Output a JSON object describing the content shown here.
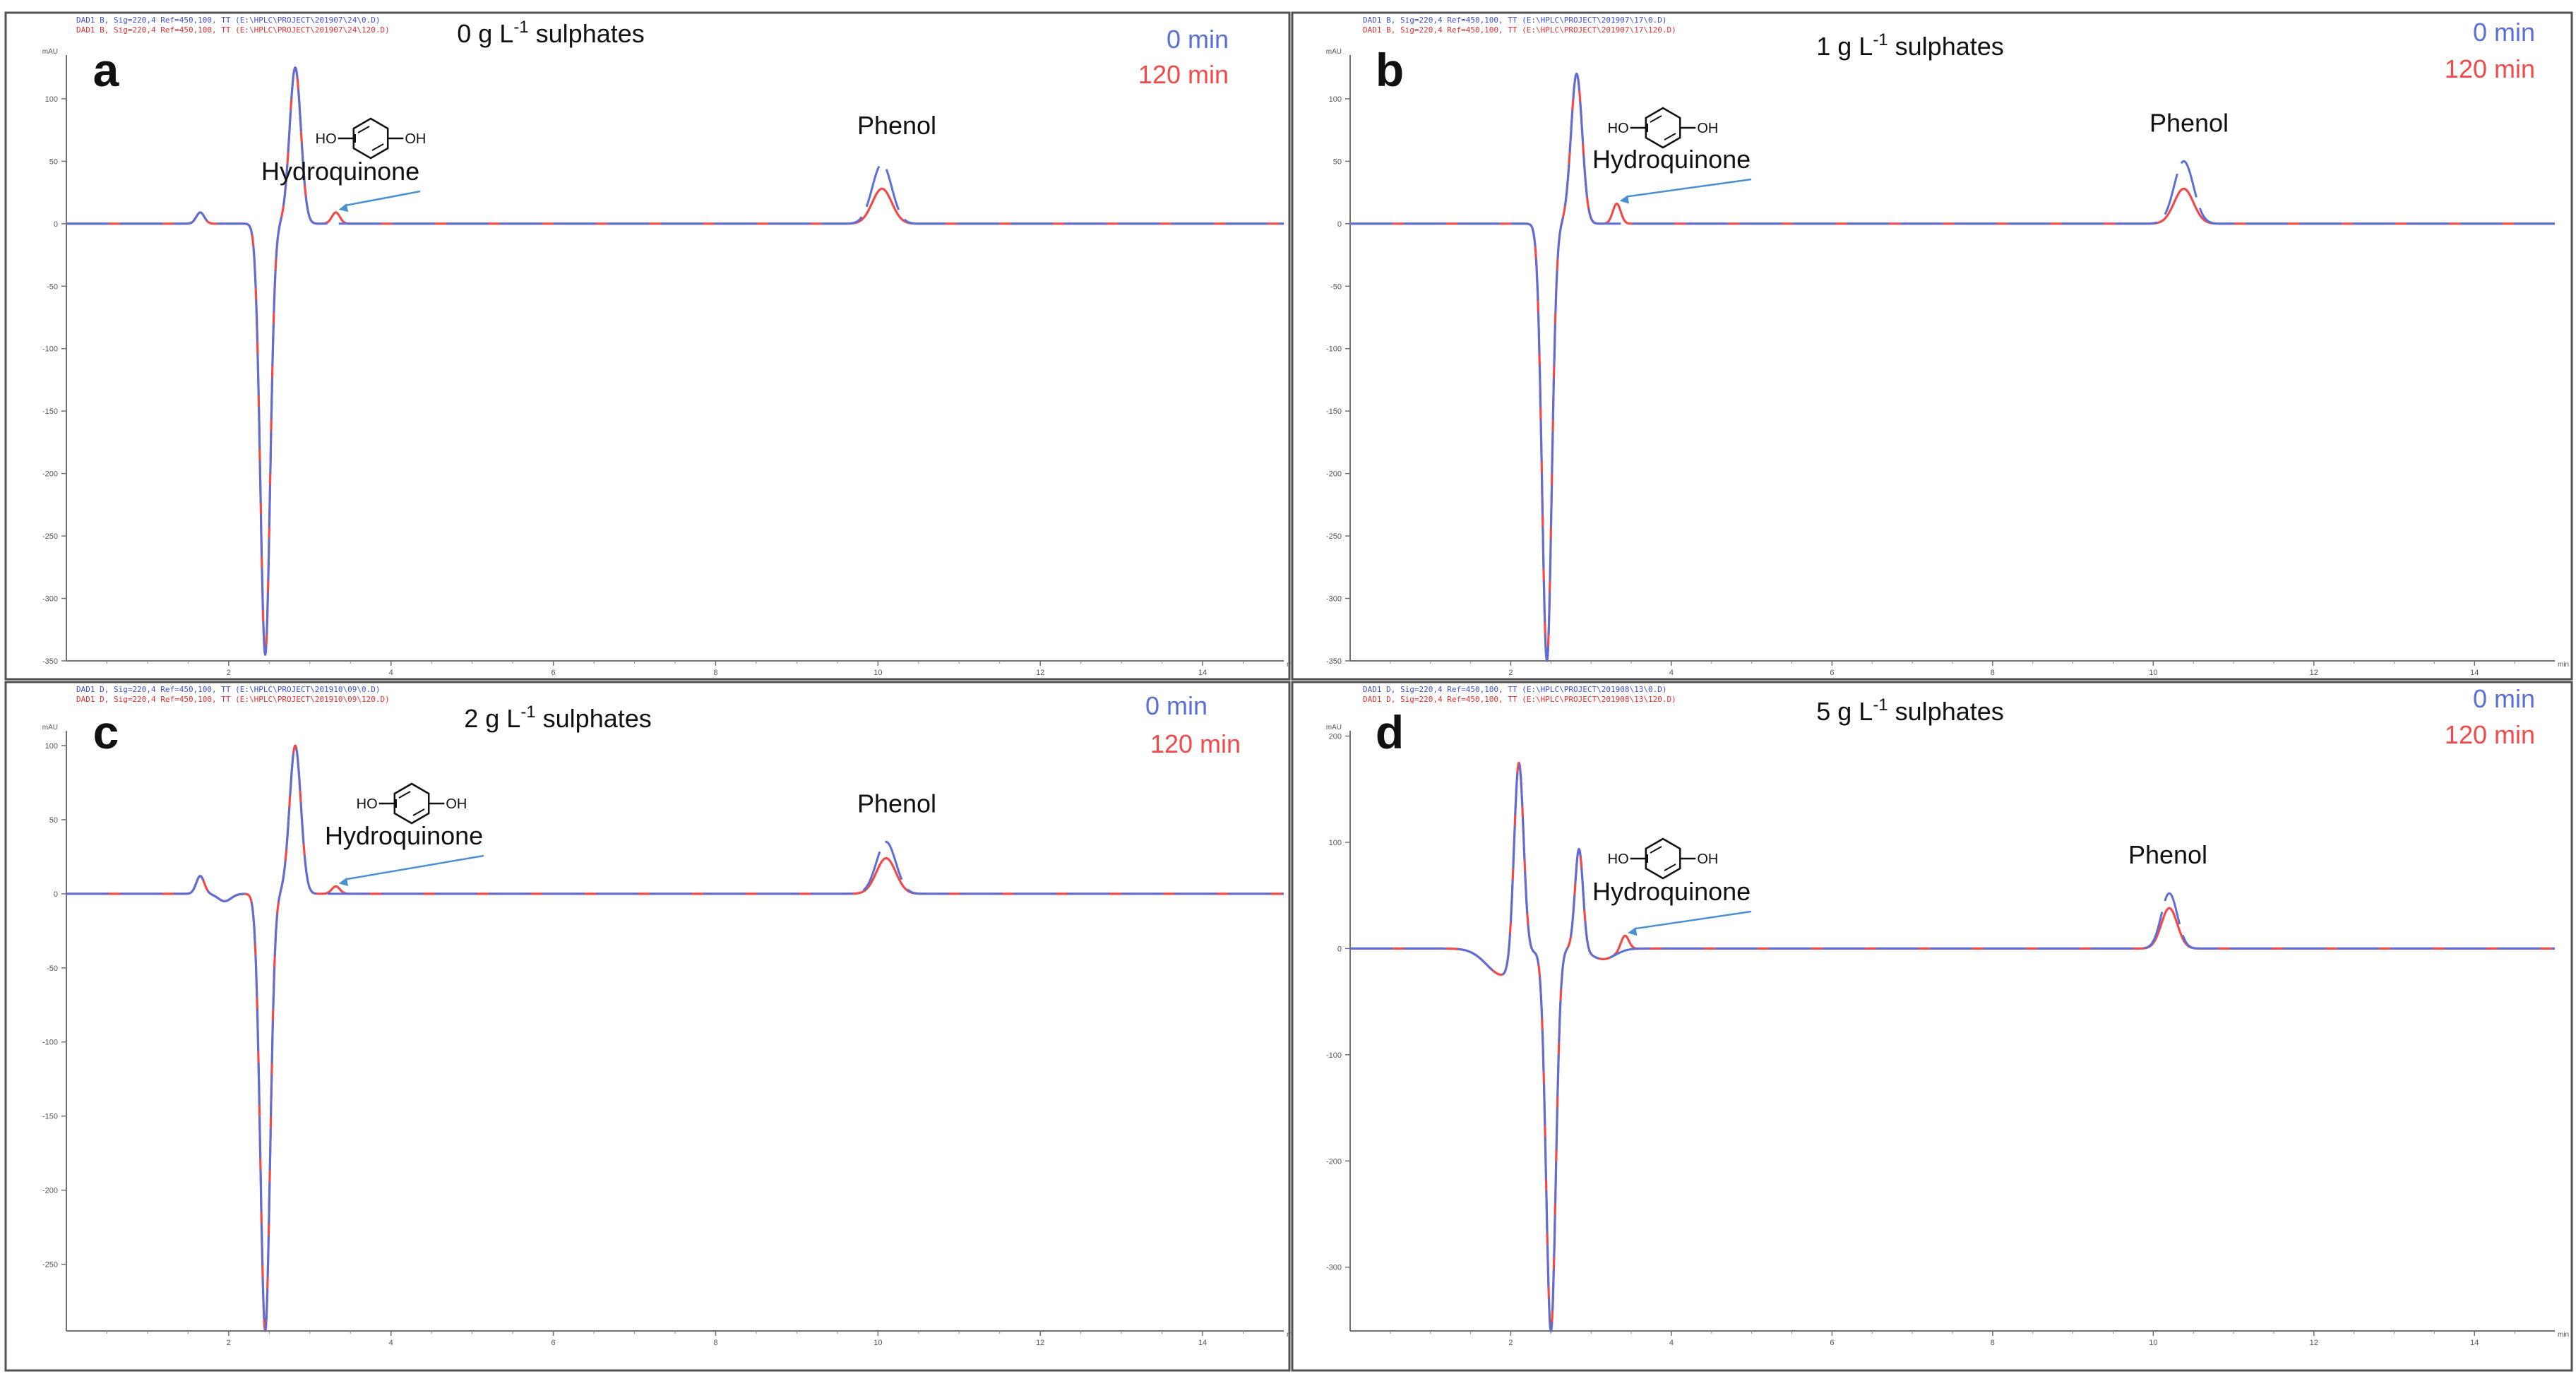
{
  "chart_data": [
    {
      "type": "line",
      "panel_letter": "a",
      "title_pre": "0 g L",
      "title_sup": "-1",
      "title_post": " sulphates",
      "y_unit": "mAU",
      "x_unit": "min",
      "xlim": [
        0,
        15
      ],
      "ylim": [
        -350,
        135
      ],
      "x_ticks": [
        "2",
        "4",
        "6",
        "8",
        "10",
        "12",
        "14"
      ],
      "y_ticks": [
        "100",
        "50",
        "0",
        "-50",
        "-100",
        "-150",
        "-200",
        "-250",
        "-300",
        "-350"
      ],
      "header_lines": [
        "DAD1 B, Sig=220,4 Ref=450,100, TT (E:\\HPLC\\PROJECT\\201907\\24\\0.D)",
        "DAD1 B, Sig=220,4 Ref=450,100, TT (E:\\HPLC\\PROJECT\\201907\\24\\120.D)"
      ],
      "series": [
        {
          "name": "0 min",
          "color": "#5b6fd6",
          "peaks": [
            {
              "rt": 1.65,
              "height": 9,
              "width": 0.05
            },
            {
              "rt": 2.45,
              "height": -345,
              "width": 0.06
            },
            {
              "rt": 2.82,
              "height": 125,
              "width": 0.07
            },
            {
              "rt": 10.05,
              "height": 48,
              "width": 0.12
            }
          ]
        },
        {
          "name": "120 min",
          "color": "#f04a4a",
          "peaks": [
            {
              "rt": 1.65,
              "height": 9,
              "width": 0.05
            },
            {
              "rt": 2.45,
              "height": -345,
              "width": 0.06
            },
            {
              "rt": 2.82,
              "height": 125,
              "width": 0.07
            },
            {
              "rt": 3.32,
              "height": 9,
              "width": 0.05
            },
            {
              "rt": 10.05,
              "height": 28,
              "width": 0.12
            }
          ]
        }
      ],
      "annotations": {
        "hydroquinone": {
          "label": "Hydroquinone",
          "rt": 3.32,
          "struct_ho": "HO",
          "struct_oh": "OH"
        },
        "phenol": {
          "label": "Phenol",
          "rt": 10.05
        }
      }
    },
    {
      "type": "line",
      "panel_letter": "b",
      "title_pre": "1 g L",
      "title_sup": "-1",
      "title_post": " sulphates",
      "y_unit": "mAU",
      "x_unit": "min",
      "xlim": [
        0,
        15
      ],
      "ylim": [
        -350,
        135
      ],
      "x_ticks": [
        "2",
        "4",
        "6",
        "8",
        "10",
        "12",
        "14"
      ],
      "y_ticks": [
        "100",
        "50",
        "0",
        "-50",
        "-100",
        "-150",
        "-200",
        "-250",
        "-300",
        "-350"
      ],
      "header_lines": [
        "DAD1 B, Sig=220,4 Ref=450,100, TT (E:\\HPLC\\PROJECT\\201907\\17\\0.D)",
        "DAD1 B, Sig=220,4 Ref=450,100, TT (E:\\HPLC\\PROJECT\\201907\\17\\120.D)"
      ],
      "series": [
        {
          "name": "0 min",
          "color": "#5b6fd6",
          "peaks": [
            {
              "rt": 2.45,
              "height": -350,
              "width": 0.06
            },
            {
              "rt": 2.82,
              "height": 120,
              "width": 0.07
            },
            {
              "rt": 10.38,
              "height": 50,
              "width": 0.12
            }
          ]
        },
        {
          "name": "120 min",
          "color": "#f04a4a",
          "peaks": [
            {
              "rt": 2.45,
              "height": -350,
              "width": 0.06
            },
            {
              "rt": 2.82,
              "height": 120,
              "width": 0.07
            },
            {
              "rt": 3.32,
              "height": 16,
              "width": 0.05
            },
            {
              "rt": 10.38,
              "height": 28,
              "width": 0.12
            }
          ]
        }
      ],
      "annotations": {
        "hydroquinone": {
          "label": "Hydroquinone",
          "rt": 3.32,
          "struct_ho": "HO",
          "struct_oh": "OH"
        },
        "phenol": {
          "label": "Phenol",
          "rt": 10.38
        }
      }
    },
    {
      "type": "line",
      "panel_letter": "c",
      "title_pre": "2 g L",
      "title_sup": "-1",
      "title_post": " sulphates",
      "y_unit": "mAU",
      "x_unit": "min",
      "xlim": [
        0,
        15
      ],
      "ylim": [
        -295,
        110
      ],
      "x_ticks": [
        "2",
        "4",
        "6",
        "8",
        "10",
        "12",
        "14"
      ],
      "y_ticks": [
        "100",
        "50",
        "0",
        "-50",
        "-100",
        "-150",
        "-200",
        "-250"
      ],
      "header_lines": [
        "DAD1 D, Sig=220,4 Ref=450,100, TT (E:\\HPLC\\PROJECT\\201910\\09\\0.D)",
        "DAD1 D, Sig=220,4 Ref=450,100, TT (E:\\HPLC\\PROJECT\\201910\\09\\120.D)"
      ],
      "series": [
        {
          "name": "0 min",
          "color": "#5b6fd6",
          "peaks": [
            {
              "rt": 1.65,
              "height": 12,
              "width": 0.05
            },
            {
              "rt": 1.95,
              "height": -5,
              "width": 0.08
            },
            {
              "rt": 2.45,
              "height": -295,
              "width": 0.06
            },
            {
              "rt": 2.82,
              "height": 100,
              "width": 0.07
            },
            {
              "rt": 10.1,
              "height": 35,
              "width": 0.12
            }
          ]
        },
        {
          "name": "120 min",
          "color": "#f04a4a",
          "peaks": [
            {
              "rt": 1.65,
              "height": 12,
              "width": 0.05
            },
            {
              "rt": 1.95,
              "height": -5,
              "width": 0.08
            },
            {
              "rt": 2.45,
              "height": -295,
              "width": 0.06
            },
            {
              "rt": 2.82,
              "height": 100,
              "width": 0.07
            },
            {
              "rt": 3.32,
              "height": 5,
              "width": 0.05
            },
            {
              "rt": 10.1,
              "height": 24,
              "width": 0.12
            }
          ]
        }
      ],
      "annotations": {
        "hydroquinone": {
          "label": "Hydroquinone",
          "rt": 3.32,
          "struct_ho": "HO",
          "struct_oh": "OH"
        },
        "phenol": {
          "label": "Phenol",
          "rt": 10.1
        }
      }
    },
    {
      "type": "line",
      "panel_letter": "d",
      "title_pre": "5 g L",
      "title_sup": "-1",
      "title_post": " sulphates",
      "y_unit": "mAU",
      "x_unit": "min",
      "xlim": [
        0,
        15
      ],
      "ylim": [
        -360,
        205
      ],
      "x_ticks": [
        "2",
        "4",
        "6",
        "8",
        "10",
        "12",
        "14"
      ],
      "y_ticks": [
        "200",
        "100",
        "0",
        "-100",
        "-200",
        "-300"
      ],
      "header_lines": [
        "DAD1 D, Sig=220,4 Ref=450,100, TT (E:\\HPLC\\PROJECT\\201908\\13\\0.D)",
        "DAD1 D, Sig=220,4 Ref=450,100, TT (E:\\HPLC\\PROJECT\\201908\\13\\120.D)"
      ],
      "series": [
        {
          "name": "0 min",
          "color": "#5b6fd6",
          "peaks": [
            {
              "rt": 1.9,
              "height": -25,
              "width": 0.2
            },
            {
              "rt": 2.1,
              "height": 190,
              "width": 0.06
            },
            {
              "rt": 2.5,
              "height": -360,
              "width": 0.06
            },
            {
              "rt": 2.85,
              "height": 95,
              "width": 0.05
            },
            {
              "rt": 3.15,
              "height": -10,
              "width": 0.15
            },
            {
              "rt": 10.2,
              "height": 52,
              "width": 0.1
            }
          ]
        },
        {
          "name": "120 min",
          "color": "#f04a4a",
          "peaks": [
            {
              "rt": 1.9,
              "height": -25,
              "width": 0.2
            },
            {
              "rt": 2.1,
              "height": 190,
              "width": 0.06
            },
            {
              "rt": 2.5,
              "height": -360,
              "width": 0.06
            },
            {
              "rt": 2.85,
              "height": 95,
              "width": 0.05
            },
            {
              "rt": 3.15,
              "height": -10,
              "width": 0.15
            },
            {
              "rt": 3.42,
              "height": 14,
              "width": 0.05
            },
            {
              "rt": 10.2,
              "height": 38,
              "width": 0.1
            }
          ]
        }
      ],
      "annotations": {
        "hydroquinone": {
          "label": "Hydroquinone",
          "rt": 3.42,
          "struct_ho": "HO",
          "struct_oh": "OH"
        },
        "phenol": {
          "label": "Phenol",
          "rt": 10.2
        }
      }
    }
  ]
}
